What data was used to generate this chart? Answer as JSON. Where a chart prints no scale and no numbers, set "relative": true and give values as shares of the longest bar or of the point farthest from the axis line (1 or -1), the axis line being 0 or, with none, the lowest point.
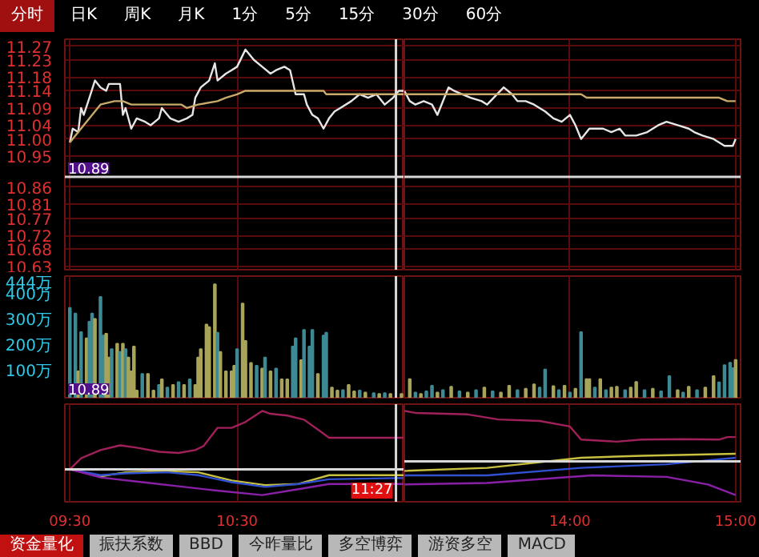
{
  "chart_data": [
    {
      "type": "line",
      "annotations": [
        "分时",
        "日K",
        "周K",
        "月K",
        "1分",
        "5分",
        "15分",
        "30分",
        "60分"
      ],
      "xlim": [
        9.47,
        11.5
      ],
      "xticks": [
        9.5,
        10.5
      ],
      "ylim": [
        10.62,
        11.29
      ],
      "yticks": [
        11.27,
        11.23,
        11.18,
        11.14,
        11.09,
        11.04,
        {
          "value": 11,
          "label": "11.00"
        },
        10.95,
        10.86,
        10.81,
        10.77,
        10.72,
        10.68,
        10.63
      ],
      "tick_labels": "y",
      "grid": true,
      "ref_lines": [
        {
          "axis": "y",
          "value": 10.89,
          "label": "10.89",
          "color": "#d8d8d8"
        },
        {
          "axis": "x",
          "value": 11.45,
          "label": null,
          "color": "#d8d8d8"
        }
      ],
      "series": [
        {
          "color": "#e6e6e6",
          "x": [
            9.5,
            9.517,
            9.55,
            9.567,
            9.583,
            9.617,
            9.65,
            9.683,
            9.717,
            9.733,
            9.767,
            9.8,
            9.817,
            9.833,
            9.867,
            9.9,
            9.95,
            9.983,
            10.033,
            10.05,
            10.1,
            10.15,
            10.2,
            10.233,
            10.25,
            10.283,
            10.333,
            10.367,
            10.383,
            10.433,
            10.467,
            10.5,
            10.55,
            10.6,
            10.65,
            10.7,
            10.733,
            10.783,
            10.817,
            10.85,
            10.9,
            10.917,
            10.95,
            10.983,
            11.017,
            11.05,
            11.083,
            11.117,
            11.183,
            11.233,
            11.283,
            11.333,
            11.383,
            11.433,
            11.467,
            11.5
          ],
          "values": [
            10.99,
            11.03,
            11.02,
            11.09,
            11.07,
            11.12,
            11.17,
            11.15,
            11.14,
            11.16,
            11.16,
            11.16,
            11.07,
            11.09,
            11.03,
            11.06,
            11.05,
            11.04,
            11.06,
            11.09,
            11.06,
            11.05,
            11.06,
            11.07,
            11.12,
            11.15,
            11.17,
            11.22,
            11.17,
            11.19,
            11.2,
            11.21,
            11.26,
            11.23,
            11.21,
            11.19,
            11.2,
            11.21,
            11.2,
            11.13,
            11.13,
            11.1,
            11.07,
            11.06,
            11.03,
            11.06,
            11.08,
            11.09,
            11.11,
            11.13,
            11.12,
            11.13,
            11.1,
            11.12,
            11.14,
            11.14
          ]
        },
        {
          "color": "#c8aa6a",
          "x": [
            9.5,
            9.583,
            9.683,
            9.767,
            9.817,
            9.867,
            9.983,
            10.167,
            10.2,
            10.267,
            10.383,
            10.433,
            10.5,
            10.55,
            10.65,
            11.017,
            11.033,
            11.5
          ],
          "values": [
            10.99,
            11.04,
            11.1,
            11.11,
            11.11,
            11.1,
            11.1,
            11.1,
            11.09,
            11.1,
            11.11,
            11.12,
            11.13,
            11.14,
            11.14,
            11.14,
            11.13,
            11.13
          ]
        }
      ]
    },
    {
      "type": "line",
      "xlim": [
        13,
        15.03
      ],
      "xticks": [
        14,
        15
      ],
      "ylim": [
        10.62,
        11.29
      ],
      "yticks": [
        11.27,
        11.23,
        11.18,
        11.14,
        11.09,
        11.04,
        11,
        10.95,
        10.86,
        10.81,
        10.77,
        10.72,
        10.68,
        10.63
      ],
      "tick_labels": false,
      "grid": true,
      "ref_lines": [
        {
          "axis": "y",
          "value": 10.89,
          "label": null,
          "color": "#d8d8d8"
        }
      ],
      "series": [
        {
          "color": "#e6e6e6",
          "x": [
            13,
            13.033,
            13.067,
            13.117,
            13.167,
            13.2,
            13.25,
            13.267,
            13.3,
            13.35,
            13.4,
            13.467,
            13.5,
            13.6,
            13.65,
            13.683,
            13.733,
            13.783,
            13.85,
            13.9,
            13.95,
            14,
            14.033,
            14.067,
            14.117,
            14.15,
            14.2,
            14.25,
            14.3,
            14.333,
            14.4,
            14.467,
            14.533,
            14.583,
            14.65,
            14.717,
            14.75,
            14.8,
            14.867,
            14.933,
            14.983,
            15
          ],
          "values": [
            11.14,
            11.11,
            11.1,
            11.11,
            11.1,
            11.07,
            11.13,
            11.15,
            11.14,
            11.13,
            11.12,
            11.11,
            11.1,
            11.15,
            11.13,
            11.11,
            11.11,
            11.1,
            11.08,
            11.06,
            11.05,
            11.07,
            11.04,
            11.0,
            11.03,
            11.03,
            11.03,
            11.02,
            11.03,
            11.01,
            11.01,
            11.02,
            11.04,
            11.05,
            11.04,
            11.03,
            11.02,
            11.01,
            11.0,
            10.98,
            10.98,
            11.0
          ]
        },
        {
          "color": "#c8aa6a",
          "x": [
            13,
            13.5,
            14.067,
            14.1,
            14.9,
            14.95,
            15
          ],
          "values": [
            11.13,
            11.13,
            11.13,
            11.12,
            11.12,
            11.11,
            11.11
          ]
        }
      ]
    },
    {
      "type": "bar",
      "annotations": [
        "10.89"
      ],
      "xlim": [
        9.47,
        11.5
      ],
      "xticks": [
        9.5,
        10.5
      ],
      "ylim": [
        0,
        475
      ],
      "yticks": [
        {
          "value": 100,
          "label": "100万"
        },
        {
          "value": 200,
          "label": "200万"
        },
        {
          "value": 300,
          "label": "300万"
        },
        {
          "value": 400,
          "label": "400万"
        },
        {
          "value": 444,
          "label": "444万"
        }
      ],
      "tick_labels": "y",
      "grid": "x",
      "ref_lines": [
        {
          "axis": "x",
          "value": 11.45,
          "label": null,
          "color": "#d8d8d8"
        }
      ],
      "x": [
        9.5,
        9.533,
        9.55,
        9.567,
        9.6,
        9.617,
        9.633,
        9.65,
        9.683,
        9.7,
        9.717,
        9.733,
        9.75,
        9.783,
        9.8,
        9.817,
        9.833,
        9.85,
        9.867,
        9.883,
        9.9,
        9.933,
        9.967,
        10,
        10.033,
        10.05,
        10.083,
        10.117,
        10.15,
        10.183,
        10.217,
        10.25,
        10.267,
        10.283,
        10.317,
        10.333,
        10.367,
        10.383,
        10.4,
        10.433,
        10.467,
        10.483,
        10.5,
        10.533,
        10.55,
        10.583,
        10.617,
        10.65,
        10.667,
        10.7,
        10.733,
        10.767,
        10.8,
        10.833,
        10.85,
        10.883,
        10.9,
        10.933,
        10.95,
        10.983,
        11.017,
        11.033,
        11.067,
        11.1,
        11.133,
        11.167,
        11.2,
        11.233,
        11.267,
        11.317,
        11.35,
        11.383,
        11.417,
        11.483
      ],
      "values": [
        351,
        329,
        103,
        256,
        232,
        297,
        329,
        308,
        394,
        243,
        250,
        157,
        190,
        211,
        179,
        211,
        190,
        157,
        103,
        200,
        28,
        93,
        93,
        28,
        50,
        72,
        40,
        50,
        61,
        50,
        72,
        50,
        157,
        190,
        286,
        276,
        443,
        254,
        179,
        103,
        103,
        125,
        190,
        368,
        222,
        136,
        125,
        114,
        157,
        103,
        114,
        72,
        72,
        200,
        232,
        147,
        265,
        200,
        265,
        93,
        243,
        254,
        40,
        28,
        30,
        50,
        25,
        28,
        20,
        18,
        15,
        18,
        15,
        15
      ],
      "colors": [
        "#3d8a94",
        "#3d8a94",
        "#a8a45a",
        "#3d8a94",
        "#a8a45a",
        "#3d8a94",
        "#3d8a94",
        "#a8a45a",
        "#3d8a94",
        "#3d8a94",
        "#a8a45a",
        "#a8a45a",
        "#3d8a94",
        "#a8a45a",
        "#3d8a94",
        "#a8a45a",
        "#3d8a94",
        "#a8a45a",
        "#a8a45a",
        "#a8a45a",
        "#a8a45a",
        "#3d8a94",
        "#a8a45a",
        "#a8a45a",
        "#3d8a94",
        "#a8a45a",
        "#3d8a94",
        "#a8a45a",
        "#3d8a94",
        "#a8a45a",
        "#3d8a94",
        "#a8a45a",
        "#a8a45a",
        "#a8a45a",
        "#a8a45a",
        "#a8a45a",
        "#a8a45a",
        "#3d8a94",
        "#a8a45a",
        "#a8a45a",
        "#a8a45a",
        "#a8a45a",
        "#3d8a94",
        "#a8a45a",
        "#a8a45a",
        "#a8a45a",
        "#3d8a94",
        "#a8a45a",
        "#3d8a94",
        "#a8a45a",
        "#3d8a94",
        "#a8a45a",
        "#a8a45a",
        "#3d8a94",
        "#3d8a94",
        "#a8a45a",
        "#3d8a94",
        "#3d8a94",
        "#3d8a94",
        "#a8a45a",
        "#3d8a94",
        "#3d8a94",
        "#a8a45a",
        "#a8a45a",
        "#3d8a94",
        "#a8a45a",
        "#a8a45a",
        "#3d8a94",
        "#a8a45a",
        "#3d8a94",
        "#a8a45a",
        "#3d8a94",
        "#a8a45a",
        "#a8a45a"
      ]
    },
    {
      "type": "bar",
      "xlim": [
        13,
        15.03
      ],
      "xticks": [
        14,
        15
      ],
      "ylim": [
        0,
        475
      ],
      "yticks": [
        100,
        200,
        300,
        400,
        444
      ],
      "tick_labels": false,
      "grid": "x",
      "x": [
        13.033,
        13.067,
        13.1,
        13.133,
        13.167,
        13.2,
        13.233,
        13.283,
        13.333,
        13.383,
        13.433,
        13.483,
        13.533,
        13.583,
        13.633,
        13.683,
        13.733,
        13.783,
        13.817,
        13.85,
        13.9,
        13.933,
        13.967,
        14,
        14.033,
        14.067,
        14.1,
        14.117,
        14.15,
        14.183,
        14.217,
        14.25,
        14.283,
        14.333,
        14.367,
        14.4,
        14.45,
        14.5,
        14.55,
        14.6,
        14.65,
        14.683,
        14.717,
        14.767,
        14.817,
        14.867,
        14.9,
        14.933,
        14.967,
        14.983,
        15
      ],
      "values": [
        73,
        20,
        15,
        25,
        47,
        20,
        30,
        43,
        25,
        20,
        30,
        40,
        25,
        20,
        47,
        30,
        35,
        52,
        40,
        110,
        45,
        30,
        47,
        20,
        35,
        256,
        73,
        73,
        40,
        73,
        30,
        40,
        43,
        30,
        40,
        62,
        30,
        35,
        25,
        84,
        30,
        20,
        43,
        30,
        40,
        84,
        60,
        127,
        137,
        116,
        148
      ],
      "colors": [
        "#a8a45a",
        "#3d8a94",
        "#a8a45a",
        "#3d8a94",
        "#3d8a94",
        "#a8a45a",
        "#3d8a94",
        "#a8a45a",
        "#3d8a94",
        "#a8a45a",
        "#3d8a94",
        "#a8a45a",
        "#3d8a94",
        "#a8a45a",
        "#a8a45a",
        "#3d8a94",
        "#a8a45a",
        "#a8a45a",
        "#3d8a94",
        "#3d8a94",
        "#a8a45a",
        "#3d8a94",
        "#a8a45a",
        "#3d8a94",
        "#a8a45a",
        "#3d8a94",
        "#a8a45a",
        "#a8a45a",
        "#3d8a94",
        "#a8a45a",
        "#3d8a94",
        "#a8a45a",
        "#a8a45a",
        "#3d8a94",
        "#a8a45a",
        "#a8a45a",
        "#3d8a94",
        "#a8a45a",
        "#3d8a94",
        "#3d8a94",
        "#a8a45a",
        "#3d8a94",
        "#a8a45a",
        "#3d8a94",
        "#a8a45a",
        "#a8a45a",
        "#3d8a94",
        "#3d8a94",
        "#3d8a94",
        "#3d8a94",
        "#a8a45a"
      ]
    },
    {
      "type": "line",
      "relative": true,
      "xlim": [
        9.47,
        11.5
      ],
      "xticks": [
        {
          "value": 9.5,
          "label": "09:30"
        },
        {
          "value": 10.5,
          "label": "10:30"
        }
      ],
      "tick_labels": "x",
      "grid": "x",
      "ref_lines": [
        {
          "axis": "x",
          "value": 11.45,
          "label": "11:27",
          "color": "#d8d8d8"
        }
      ],
      "series": [
        {
          "color": "#a0205a",
          "x": [
            9.5,
            9.567,
            9.683,
            9.8,
            9.9,
            10.033,
            10.15,
            10.25,
            10.3,
            10.383,
            10.467,
            10.55,
            10.65,
            10.7,
            10.8,
            10.9,
            10.983,
            11.05,
            11.45,
            11.5
          ],
          "values": [
            0,
            0.19,
            0.33,
            0.41,
            0.37,
            0.3,
            0.28,
            0.33,
            0.4,
            0.71,
            0.71,
            0.81,
            1,
            0.95,
            0.92,
            0.85,
            0.68,
            0.54,
            0.54,
            0.54
          ]
        },
        {
          "color": "#c8c040",
          "x": [
            9.5,
            9.683,
            9.833,
            10.05,
            10.267,
            10.467,
            10.667,
            10.867,
            11.05,
            11.45,
            11.5
          ],
          "values": [
            0,
            -0.12,
            -0.05,
            -0.03,
            -0.05,
            -0.19,
            -0.27,
            -0.25,
            -0.1,
            -0.1,
            -0.1
          ]
        },
        {
          "color": "#3050d0",
          "x": [
            9.5,
            9.683,
            9.833,
            10.083,
            10.267,
            10.467,
            10.667,
            10.867,
            11.05,
            11.45,
            11.5
          ],
          "values": [
            0,
            -0.1,
            -0.07,
            -0.05,
            -0.1,
            -0.22,
            -0.3,
            -0.25,
            -0.17,
            -0.15,
            -0.15
          ]
        },
        {
          "color": "#8a20a8",
          "x": [
            9.5,
            9.683,
            9.933,
            10.15,
            10.367,
            10.65,
            10.867,
            11.05,
            11.45,
            11.5
          ],
          "values": [
            0,
            -0.14,
            -0.22,
            -0.29,
            -0.36,
            -0.44,
            -0.34,
            -0.25,
            -0.25,
            -0.25
          ]
        }
      ]
    },
    {
      "type": "line",
      "relative": true,
      "annotations": [
        "资金量化",
        "振扶系数",
        "BBD",
        "今昨量比",
        "多空博弈",
        "游资多空",
        "MACD"
      ],
      "xlim": [
        13,
        15.03
      ],
      "xticks": [
        {
          "value": 14,
          "label": "14:00"
        },
        {
          "value": 15,
          "label": "15:00"
        }
      ],
      "tick_labels": "x",
      "grid": "x",
      "series": [
        {
          "color": "#a0205a",
          "x": [
            13,
            13.067,
            13.383,
            13.567,
            13.817,
            14,
            14.067,
            14.283,
            14.433,
            14.683,
            14.9,
            14.95,
            15
          ],
          "values": [
            1,
            0.96,
            0.93,
            0.83,
            0.8,
            0.69,
            0.43,
            0.39,
            0.43,
            0.44,
            0.43,
            0.48,
            0.48
          ]
        },
        {
          "color": "#c8c040",
          "x": [
            13,
            13.5,
            14.067,
            14.433,
            15
          ],
          "values": [
            -0.19,
            -0.13,
            0.07,
            0.11,
            0.15
          ]
        },
        {
          "color": "#3050d0",
          "x": [
            13,
            13.5,
            14.067,
            14.583,
            15
          ],
          "values": [
            -0.28,
            -0.28,
            -0.13,
            -0.06,
            0.07
          ]
        },
        {
          "color": "#8a20a8",
          "x": [
            13,
            13.5,
            14.133,
            14.583,
            14.833,
            15
          ],
          "values": [
            -0.46,
            -0.43,
            -0.28,
            -0.31,
            -0.46,
            -0.67
          ]
        }
      ]
    }
  ]
}
